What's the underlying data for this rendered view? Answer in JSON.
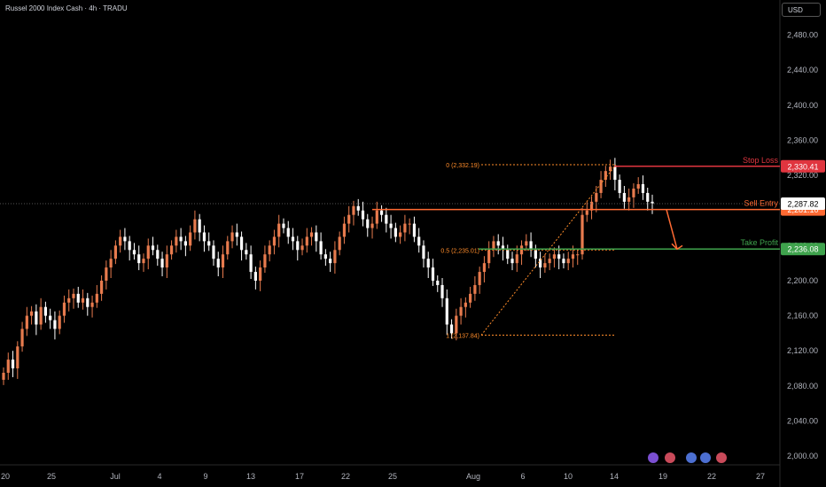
{
  "header": {
    "title": "Russel 2000 Index Cash · 4h · TRADU",
    "currency": "USD"
  },
  "colors": {
    "up": "#e87b4e",
    "down": "#ffffff",
    "stop": "#e0353f",
    "entry": "#ff6a33",
    "target": "#3fa34d",
    "fib": "#ff8c2a",
    "axis_text": "#b2b5be",
    "grid": "#1a1a1a"
  },
  "chart_data": {
    "type": "candlestick",
    "instrument": "Russel 2000 Index Cash",
    "timeframe": "4h",
    "source": "TRADU",
    "currency": "USD",
    "ylim": [
      1990,
      2520
    ],
    "y_ticks": [
      2000,
      2040,
      2080,
      2120,
      2160,
      2200,
      2240,
      2280,
      2320,
      2360,
      2400,
      2440,
      2480
    ],
    "y_tick_labels": [
      "2,000.00",
      "2,040.00",
      "2,080.00",
      "2,120.00",
      "2,160.00",
      "2,200.00",
      "2,240.00",
      "2,280.00",
      "2,320.00",
      "2,360.00",
      "2,400.00",
      "2,440.00",
      "2,480.00"
    ],
    "x_ticks": [
      "20",
      "25",
      "Jul",
      "4",
      "9",
      "13",
      "17",
      "22",
      "25",
      "Aug",
      "6",
      "10",
      "14",
      "19",
      "22",
      "27"
    ],
    "current_price": {
      "value": 2287.82,
      "label": "2,287.82"
    },
    "levels": [
      {
        "name": "Stop Loss",
        "value": 2330.41,
        "label": "2,330.41"
      },
      {
        "name": "Sell Entry",
        "value": 2281.1,
        "label": "2,281.10"
      },
      {
        "name": "Take Profit",
        "value": 2236.08,
        "label": "2,236.08"
      }
    ],
    "fibonacci": [
      {
        "ratio": "0",
        "value": 2332.19,
        "label": "0 (2,332.19)"
      },
      {
        "ratio": "0.5",
        "value": 2235.01,
        "label": "0.5 (2,235.01)"
      },
      {
        "ratio": "1",
        "value": 2137.84,
        "label": "1 (2,137.84)"
      }
    ],
    "close_path": [
      2095,
      2110,
      2100,
      2125,
      2145,
      2160,
      2165,
      2150,
      2170,
      2160,
      2155,
      2145,
      2160,
      2175,
      2180,
      2185,
      2175,
      2180,
      2170,
      2175,
      2185,
      2200,
      2215,
      2225,
      2240,
      2250,
      2245,
      2235,
      2230,
      2220,
      2225,
      2240,
      2235,
      2225,
      2215,
      2230,
      2240,
      2250,
      2245,
      2240,
      2255,
      2270,
      2255,
      2245,
      2240,
      2225,
      2215,
      2230,
      2245,
      2255,
      2250,
      2235,
      2230,
      2210,
      2200,
      2215,
      2230,
      2240,
      2250,
      2265,
      2260,
      2250,
      2245,
      2235,
      2240,
      2250,
      2255,
      2245,
      2230,
      2225,
      2220,
      2235,
      2250,
      2265,
      2275,
      2285,
      2280,
      2270,
      2260,
      2265,
      2280,
      2275,
      2265,
      2260,
      2250,
      2255,
      2265,
      2265,
      2250,
      2240,
      2225,
      2215,
      2200,
      2195,
      2180,
      2150,
      2140,
      2160,
      2170,
      2175,
      2185,
      2195,
      2210,
      2220,
      2235,
      2245,
      2240,
      2235,
      2225,
      2220,
      2230,
      2240,
      2245,
      2235,
      2225,
      2215,
      2220,
      2225,
      2230,
      2225,
      2220,
      2225,
      2230,
      2230,
      2275,
      2280,
      2290,
      2300,
      2315,
      2325,
      2330,
      2315,
      2300,
      2290,
      2295,
      2305,
      2310,
      2300,
      2290,
      2288
    ]
  }
}
